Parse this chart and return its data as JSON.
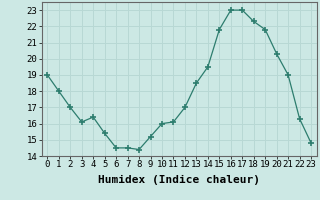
{
  "x": [
    0,
    1,
    2,
    3,
    4,
    5,
    6,
    7,
    8,
    9,
    10,
    11,
    12,
    13,
    14,
    15,
    16,
    17,
    18,
    19,
    20,
    21,
    22,
    23
  ],
  "y": [
    19.0,
    18.0,
    17.0,
    16.1,
    16.4,
    15.4,
    14.5,
    14.5,
    14.4,
    15.2,
    16.0,
    16.1,
    17.0,
    18.5,
    19.5,
    21.8,
    23.0,
    23.0,
    22.3,
    21.8,
    20.3,
    19.0,
    16.3,
    14.8
  ],
  "line_color": "#2d7d6e",
  "marker": "+",
  "marker_size": 4,
  "bg_color": "#cce8e4",
  "grid_color": "#b8d8d4",
  "xlabel": "Humidex (Indice chaleur)",
  "ylim": [
    14,
    23.5
  ],
  "yticks": [
    14,
    15,
    16,
    17,
    18,
    19,
    20,
    21,
    22,
    23
  ],
  "xticks": [
    0,
    1,
    2,
    3,
    4,
    5,
    6,
    7,
    8,
    9,
    10,
    11,
    12,
    13,
    14,
    15,
    16,
    17,
    18,
    19,
    20,
    21,
    22,
    23
  ],
  "tick_label_fontsize": 6.5,
  "xlabel_fontsize": 8.0
}
